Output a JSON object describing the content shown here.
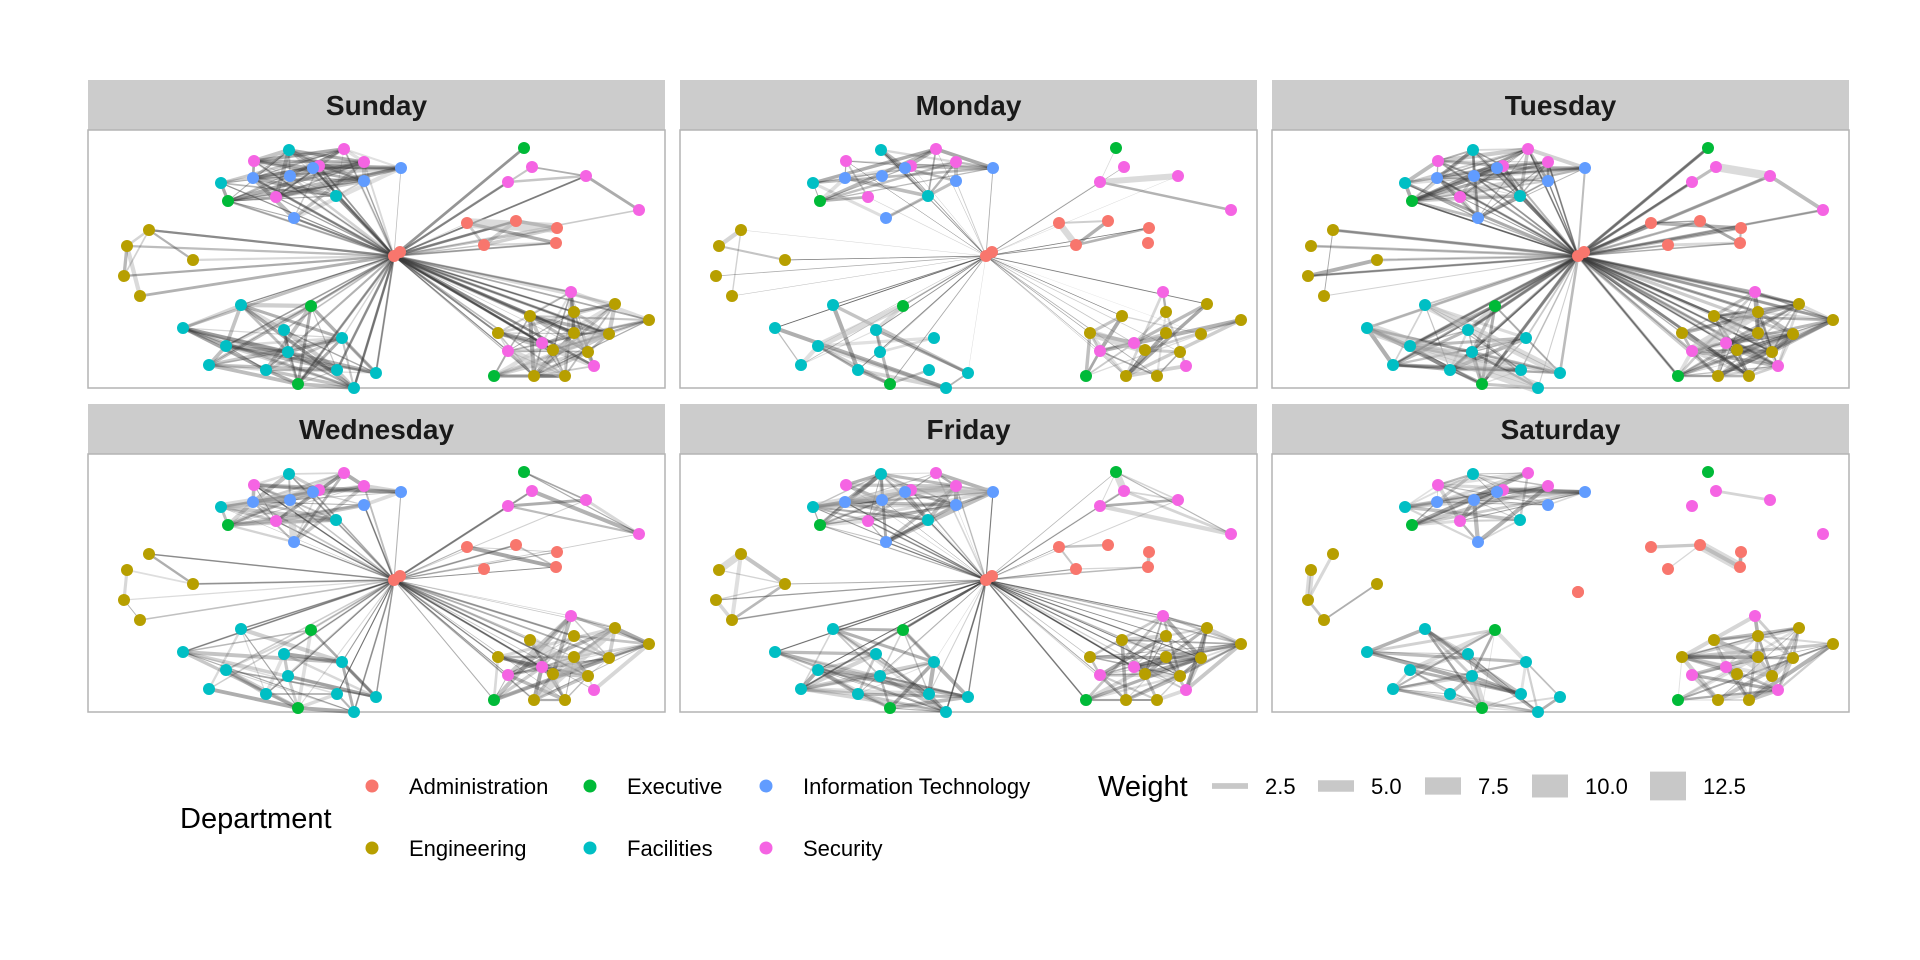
{
  "chart_data": {
    "type": "network",
    "facets": [
      "Sunday",
      "Monday",
      "Tuesday",
      "Wednesday",
      "Friday",
      "Saturday"
    ],
    "legend_department": {
      "title": "Department",
      "items": [
        {
          "label": "Administration",
          "color": "#F8766D"
        },
        {
          "label": "Executive",
          "color": "#00BA38"
        },
        {
          "label": "Information Technology",
          "color": "#619CFF"
        },
        {
          "label": "Engineering",
          "color": "#B79F00"
        },
        {
          "label": "Facilities",
          "color": "#00BFC4"
        },
        {
          "label": "Security",
          "color": "#F564E3"
        }
      ]
    },
    "legend_weight": {
      "title": "Weight",
      "items": [
        "2.5",
        "5.0",
        "7.5",
        "10.0",
        "12.5"
      ],
      "values": [
        2.5,
        5.0,
        7.5,
        10.0,
        12.5
      ]
    },
    "edge_color": "#3a3a3a",
    "panel_strip_color": "#cccccc"
  }
}
